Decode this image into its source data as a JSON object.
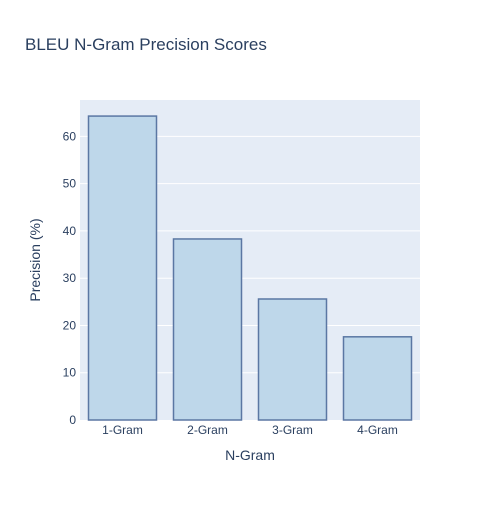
{
  "chart_data": {
    "type": "bar",
    "title": "BLEU N-Gram Precision Scores",
    "xlabel": "N-Gram",
    "ylabel": "Precision (%)",
    "categories": [
      "1-Gram",
      "2-Gram",
      "3-Gram",
      "4-Gram"
    ],
    "values": [
      64.3,
      38.3,
      25.6,
      17.6
    ],
    "ylim": [
      0,
      67.7
    ],
    "yticks": [
      0,
      10,
      20,
      30,
      40,
      50,
      60
    ],
    "grid": true,
    "colors": {
      "plot_background": "#e5ecf6",
      "bar_fill": "#bed7ea",
      "bar_stroke": "#5b77a3",
      "gridline": "#ffffff",
      "text": "#2a3f5f"
    }
  }
}
